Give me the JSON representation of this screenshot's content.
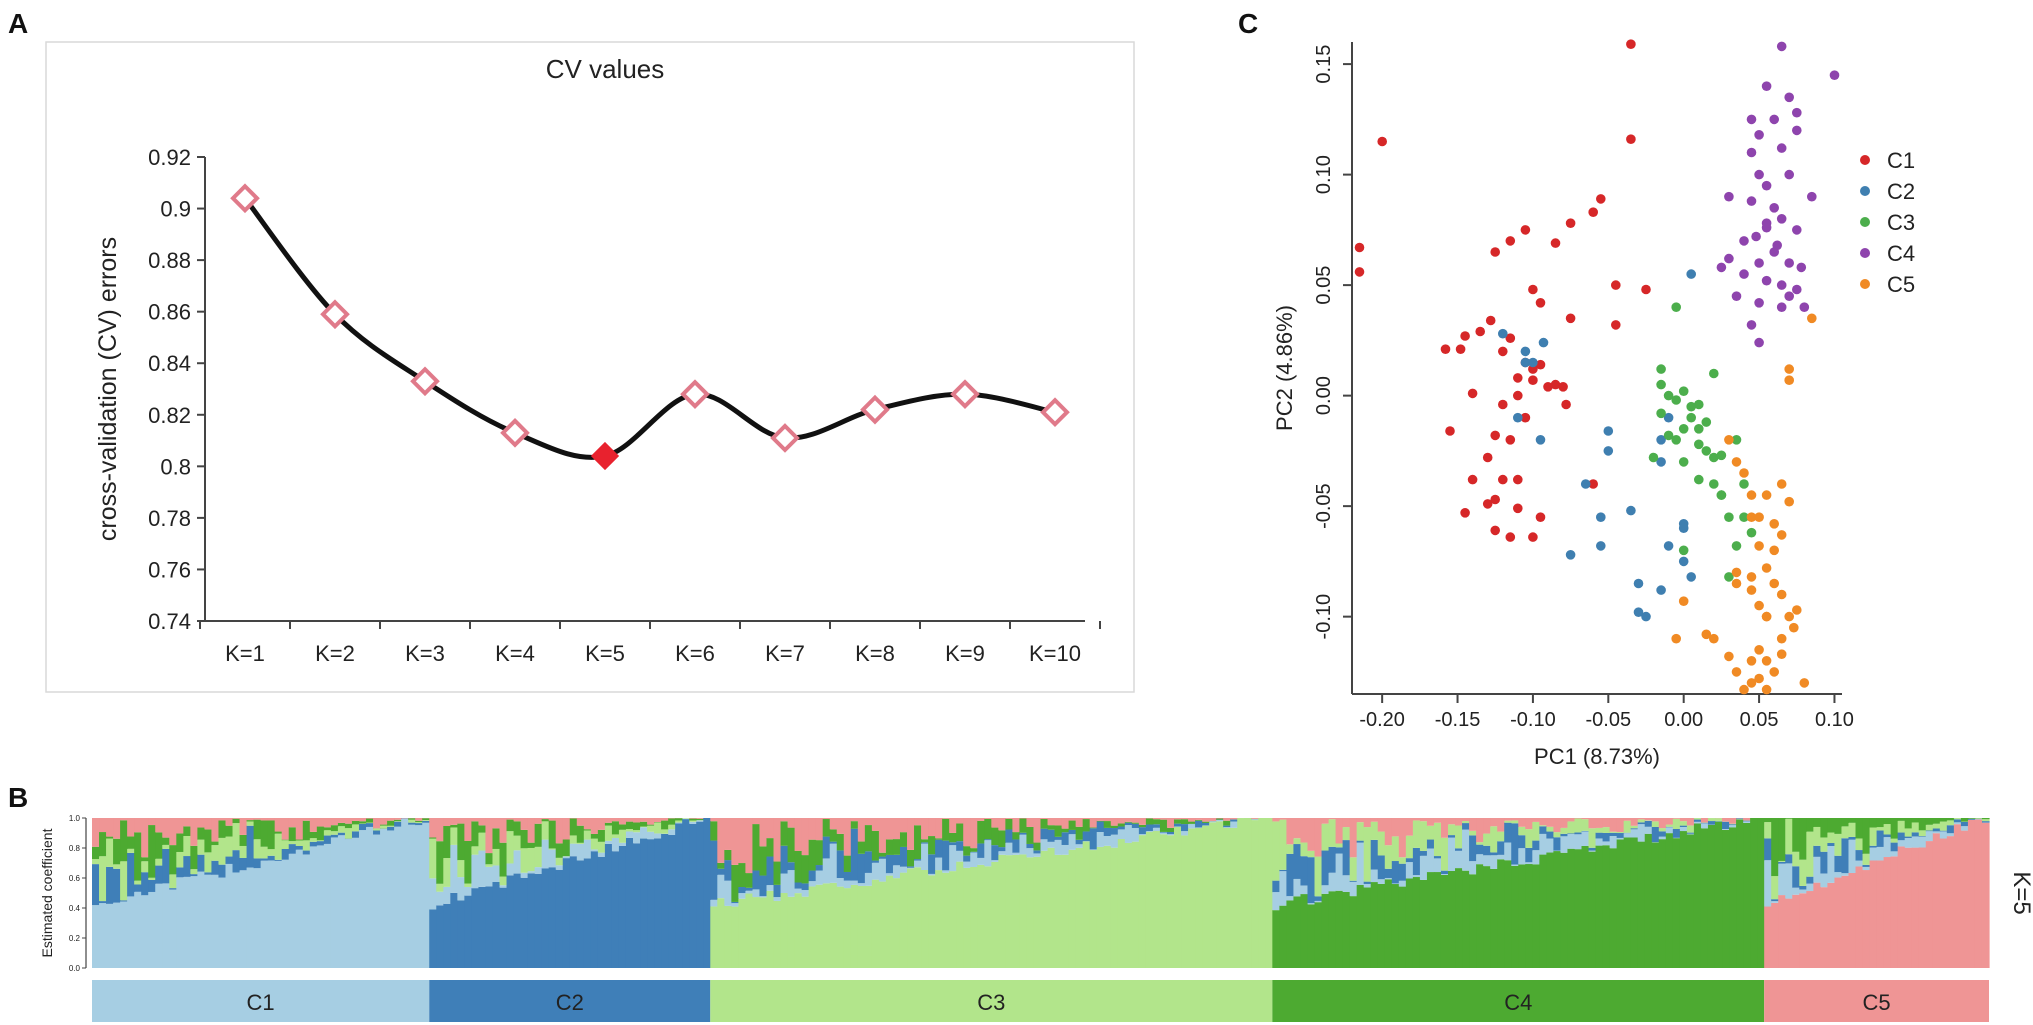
{
  "panels": {
    "a": "A",
    "b": "B",
    "c": "C"
  },
  "colors": {
    "C1": "#a6cee3",
    "C2": "#3f7fb8",
    "C3": "#b2e58b",
    "C4": "#4daa31",
    "C5": "#ef9595",
    "line": "#111111",
    "marker": "#e07a8a",
    "marker_min": "#e8222e",
    "pc_C1": "#d62728",
    "pc_C2": "#3f7fb0",
    "pc_C3": "#4cae4c",
    "pc_C4": "#8e44ad",
    "pc_C5": "#f08a24"
  },
  "chart_data": [
    {
      "id": "cv",
      "type": "line",
      "title": "CV values",
      "xlabel": "",
      "ylabel": "cross-validation (CV) errors",
      "categories": [
        "K=1",
        "K=2",
        "K=3",
        "K=4",
        "K=5",
        "K=6",
        "K=7",
        "K=8",
        "K=9",
        "K=10"
      ],
      "values": [
        0.904,
        0.859,
        0.833,
        0.813,
        0.804,
        0.828,
        0.811,
        0.822,
        0.828,
        0.821
      ],
      "highlight_index": 4,
      "ylim": [
        0.74,
        0.92
      ],
      "yticks": [
        0.74,
        0.76,
        0.78,
        0.8,
        0.82,
        0.84,
        0.86,
        0.88,
        0.9,
        0.92
      ],
      "ytick_labels": [
        "0.74",
        "0.76",
        "0.78",
        "0.8",
        "0.82",
        "0.84",
        "0.86",
        "0.88",
        "0.9",
        "0.92"
      ]
    },
    {
      "id": "admixture",
      "type": "bar",
      "stacked": true,
      "ylabel": "Estimated coefficient",
      "ylim": [
        0,
        1
      ],
      "yticks": [
        0,
        0.2,
        0.4,
        0.6,
        0.8,
        1.0
      ],
      "ytick_labels": [
        "0.0",
        "0.2",
        "0.4",
        "0.6",
        "0.8",
        "1.0"
      ],
      "k_label": "K=5",
      "groups": [
        {
          "name": "C1",
          "count": 48
        },
        {
          "name": "C2",
          "count": 40
        },
        {
          "name": "C3",
          "count": 80
        },
        {
          "name": "C4",
          "count": 70
        },
        {
          "name": "C5",
          "count": 32
        }
      ],
      "series_order": [
        "C1",
        "C2",
        "C3",
        "C4",
        "C5"
      ],
      "note": "Each bar = one individual; components sum to 1. Dominant component rises across each group."
    },
    {
      "id": "pca",
      "type": "scatter",
      "xlabel": "PC1 (8.73%)",
      "ylabel": "PC2 (4.86%)",
      "xlim": [
        -0.22,
        0.105
      ],
      "ylim": [
        -0.135,
        0.16
      ],
      "xticks": [
        -0.2,
        -0.15,
        -0.1,
        -0.05,
        0.0,
        0.05,
        0.1
      ],
      "xtick_labels": [
        "-0.20",
        "-0.15",
        "-0.10",
        "-0.05",
        "0.00",
        "0.05",
        "0.10"
      ],
      "yticks": [
        -0.1,
        -0.05,
        0.0,
        0.05,
        0.1,
        0.15
      ],
      "ytick_labels": [
        "-0.10",
        "-0.05",
        "0.00",
        "0.05",
        "0.10",
        "0.15"
      ],
      "legend": [
        "C1",
        "C2",
        "C3",
        "C4",
        "C5"
      ],
      "legend_position": "top-right",
      "series": [
        {
          "name": "C1",
          "points": [
            [
              -0.215,
              0.067
            ],
            [
              -0.215,
              0.056
            ],
            [
              -0.2,
              0.115
            ],
            [
              -0.035,
              0.159
            ],
            [
              -0.035,
              0.116
            ],
            [
              -0.06,
              0.083
            ],
            [
              -0.055,
              0.089
            ],
            [
              -0.085,
              0.069
            ],
            [
              -0.105,
              0.075
            ],
            [
              -0.115,
              0.07
            ],
            [
              -0.075,
              0.078
            ],
            [
              -0.1,
              0.048
            ],
            [
              -0.125,
              0.065
            ],
            [
              -0.045,
              0.05
            ],
            [
              -0.025,
              0.048
            ],
            [
              -0.045,
              0.032
            ],
            [
              -0.075,
              0.035
            ],
            [
              -0.095,
              0.042
            ],
            [
              -0.128,
              0.034
            ],
            [
              -0.135,
              0.029
            ],
            [
              -0.145,
              0.027
            ],
            [
              -0.158,
              0.021
            ],
            [
              -0.148,
              0.021
            ],
            [
              -0.12,
              0.02
            ],
            [
              -0.115,
              0.026
            ],
            [
              -0.105,
              0.015
            ],
            [
              -0.1,
              0.012
            ],
            [
              -0.1,
              0.007
            ],
            [
              -0.095,
              0.014
            ],
            [
              -0.09,
              0.004
            ],
            [
              -0.085,
              0.005
            ],
            [
              -0.08,
              0.004
            ],
            [
              -0.078,
              -0.004
            ],
            [
              -0.11,
              0.008
            ],
            [
              -0.11,
              0.0
            ],
            [
              -0.14,
              0.001
            ],
            [
              -0.12,
              -0.004
            ],
            [
              -0.105,
              -0.01
            ],
            [
              -0.155,
              -0.016
            ],
            [
              -0.125,
              -0.018
            ],
            [
              -0.115,
              -0.02
            ],
            [
              -0.11,
              -0.038
            ],
            [
              -0.13,
              -0.028
            ],
            [
              -0.12,
              -0.038
            ],
            [
              -0.14,
              -0.038
            ],
            [
              -0.125,
              -0.047
            ],
            [
              -0.13,
              -0.049
            ],
            [
              -0.145,
              -0.053
            ],
            [
              -0.11,
              -0.051
            ],
            [
              -0.095,
              -0.055
            ],
            [
              -0.125,
              -0.061
            ],
            [
              -0.115,
              -0.064
            ],
            [
              -0.1,
              -0.064
            ],
            [
              -0.06,
              -0.04
            ]
          ]
        },
        {
          "name": "C2",
          "points": [
            [
              0.005,
              0.055
            ],
            [
              -0.105,
              0.015
            ],
            [
              -0.1,
              0.015
            ],
            [
              -0.105,
              0.02
            ],
            [
              -0.12,
              0.028
            ],
            [
              -0.093,
              0.024
            ],
            [
              -0.11,
              -0.01
            ],
            [
              -0.095,
              -0.02
            ],
            [
              -0.065,
              -0.04
            ],
            [
              -0.05,
              -0.016
            ],
            [
              -0.05,
              -0.025
            ],
            [
              -0.055,
              -0.055
            ],
            [
              -0.035,
              -0.052
            ],
            [
              -0.075,
              -0.072
            ],
            [
              -0.055,
              -0.068
            ],
            [
              -0.03,
              -0.085
            ],
            [
              -0.025,
              -0.1
            ],
            [
              -0.03,
              -0.098
            ],
            [
              -0.015,
              -0.088
            ],
            [
              -0.01,
              -0.068
            ],
            [
              0.0,
              -0.075
            ],
            [
              0.005,
              -0.082
            ],
            [
              0.0,
              -0.058
            ],
            [
              -0.015,
              -0.03
            ],
            [
              -0.015,
              -0.02
            ],
            [
              0.0,
              -0.06
            ],
            [
              -0.01,
              -0.01
            ]
          ]
        },
        {
          "name": "C3",
          "points": [
            [
              -0.005,
              0.04
            ],
            [
              -0.015,
              0.012
            ],
            [
              -0.015,
              0.005
            ],
            [
              -0.01,
              0.0
            ],
            [
              -0.005,
              -0.002
            ],
            [
              0.0,
              0.002
            ],
            [
              0.005,
              -0.005
            ],
            [
              0.01,
              -0.004
            ],
            [
              0.005,
              -0.01
            ],
            [
              0.0,
              -0.015
            ],
            [
              -0.005,
              -0.02
            ],
            [
              0.01,
              -0.015
            ],
            [
              0.015,
              -0.025
            ],
            [
              0.02,
              -0.028
            ],
            [
              0.025,
              -0.027
            ],
            [
              0.02,
              -0.04
            ],
            [
              0.025,
              -0.045
            ],
            [
              0.035,
              -0.02
            ],
            [
              0.03,
              -0.055
            ],
            [
              0.04,
              -0.04
            ],
            [
              0.04,
              -0.055
            ],
            [
              0.035,
              -0.068
            ],
            [
              0.03,
              -0.082
            ],
            [
              0.045,
              -0.062
            ],
            [
              0.01,
              -0.038
            ],
            [
              0.0,
              -0.07
            ],
            [
              0.0,
              -0.03
            ],
            [
              0.02,
              0.01
            ],
            [
              -0.02,
              -0.028
            ],
            [
              -0.015,
              -0.008
            ],
            [
              0.01,
              -0.022
            ],
            [
              0.015,
              -0.012
            ],
            [
              -0.01,
              -0.018
            ],
            [
              0.025,
              -0.045
            ]
          ]
        },
        {
          "name": "C4",
          "points": [
            [
              0.065,
              0.158
            ],
            [
              0.1,
              0.145
            ],
            [
              0.055,
              0.14
            ],
            [
              0.07,
              0.135
            ],
            [
              0.075,
              0.128
            ],
            [
              0.075,
              0.12
            ],
            [
              0.06,
              0.125
            ],
            [
              0.045,
              0.125
            ],
            [
              0.05,
              0.118
            ],
            [
              0.065,
              0.112
            ],
            [
              0.045,
              0.11
            ],
            [
              0.05,
              0.1
            ],
            [
              0.055,
              0.095
            ],
            [
              0.07,
              0.1
            ],
            [
              0.045,
              0.088
            ],
            [
              0.06,
              0.085
            ],
            [
              0.065,
              0.08
            ],
            [
              0.075,
              0.075
            ],
            [
              0.085,
              0.09
            ],
            [
              0.055,
              0.076
            ],
            [
              0.048,
              0.072
            ],
            [
              0.04,
              0.07
            ],
            [
              0.062,
              0.068
            ],
            [
              0.07,
              0.06
            ],
            [
              0.078,
              0.058
            ],
            [
              0.05,
              0.06
            ],
            [
              0.04,
              0.055
            ],
            [
              0.055,
              0.052
            ],
            [
              0.065,
              0.05
            ],
            [
              0.075,
              0.048
            ],
            [
              0.025,
              0.058
            ],
            [
              0.03,
              0.062
            ],
            [
              0.035,
              0.045
            ],
            [
              0.05,
              0.042
            ],
            [
              0.065,
              0.04
            ],
            [
              0.08,
              0.04
            ],
            [
              0.045,
              0.032
            ],
            [
              0.07,
              0.045
            ],
            [
              0.055,
              0.078
            ],
            [
              0.06,
              0.065
            ],
            [
              0.05,
              0.024
            ],
            [
              0.03,
              0.09
            ]
          ]
        },
        {
          "name": "C5",
          "points": [
            [
              0.085,
              0.035
            ],
            [
              0.07,
              0.012
            ],
            [
              0.07,
              0.007
            ],
            [
              0.03,
              -0.02
            ],
            [
              0.035,
              -0.03
            ],
            [
              0.04,
              -0.035
            ],
            [
              0.045,
              -0.045
            ],
            [
              0.055,
              -0.045
            ],
            [
              0.065,
              -0.04
            ],
            [
              0.07,
              -0.048
            ],
            [
              0.05,
              -0.055
            ],
            [
              0.06,
              -0.058
            ],
            [
              0.065,
              -0.063
            ],
            [
              0.05,
              -0.068
            ],
            [
              0.055,
              -0.078
            ],
            [
              0.045,
              -0.082
            ],
            [
              0.035,
              -0.085
            ],
            [
              0.045,
              -0.088
            ],
            [
              0.06,
              -0.085
            ],
            [
              0.065,
              -0.09
            ],
            [
              0.05,
              -0.095
            ],
            [
              0.055,
              -0.1
            ],
            [
              0.07,
              -0.1
            ],
            [
              0.065,
              -0.11
            ],
            [
              0.05,
              -0.115
            ],
            [
              0.045,
              -0.12
            ],
            [
              0.055,
              -0.12
            ],
            [
              0.06,
              -0.125
            ],
            [
              0.05,
              -0.128
            ],
            [
              0.045,
              -0.13
            ],
            [
              0.055,
              -0.133
            ],
            [
              0.08,
              -0.13
            ],
            [
              0.035,
              -0.125
            ],
            [
              0.04,
              -0.133
            ],
            [
              0.03,
              -0.118
            ],
            [
              0.02,
              -0.11
            ],
            [
              0.015,
              -0.108
            ],
            [
              -0.005,
              -0.11
            ],
            [
              0.0,
              -0.093
            ],
            [
              0.065,
              -0.117
            ],
            [
              0.073,
              -0.105
            ],
            [
              0.075,
              -0.097
            ],
            [
              0.035,
              -0.08
            ],
            [
              0.055,
              -0.1
            ],
            [
              0.045,
              -0.055
            ],
            [
              0.06,
              -0.07
            ]
          ]
        }
      ]
    }
  ]
}
